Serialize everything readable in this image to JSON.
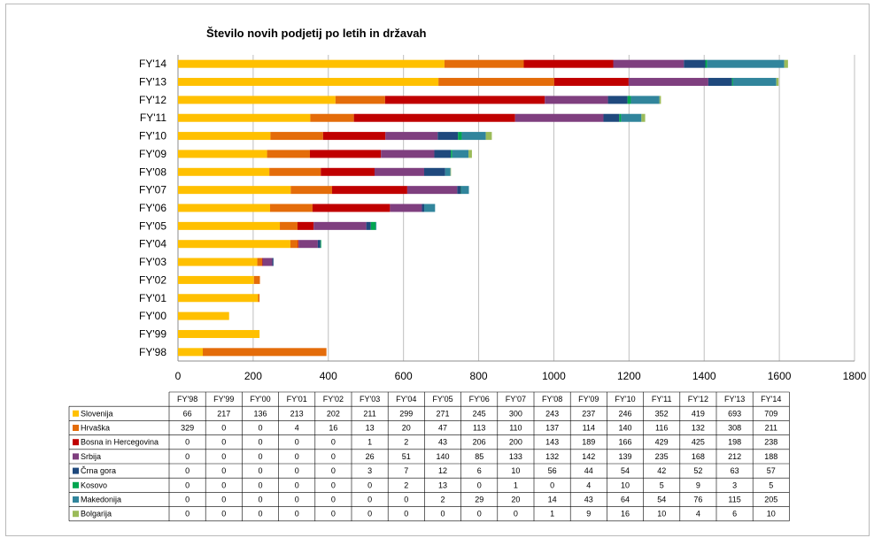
{
  "chart_data": {
    "type": "bar",
    "orientation": "horizontal",
    "stacked": true,
    "title": "Število novih podjetij po letih in državah",
    "categories": [
      "FY'98",
      "FY'99",
      "FY'00",
      "FY'01",
      "FY'02",
      "FY'03",
      "FY'04",
      "FY'05",
      "FY'06",
      "FY'07",
      "FY'08",
      "FY'09",
      "FY'10",
      "FY'11",
      "FY'12",
      "FY'13",
      "FY'14"
    ],
    "xlim": [
      0,
      1800
    ],
    "xticks": [
      0,
      200,
      400,
      600,
      800,
      1000,
      1200,
      1400,
      1600,
      1800
    ],
    "grid": true,
    "legend": "data-table",
    "series": [
      {
        "name": "Slovenija",
        "color": "#FFC000",
        "values": [
          66,
          217,
          136,
          213,
          202,
          211,
          299,
          271,
          245,
          300,
          243,
          237,
          246,
          352,
          419,
          693,
          709
        ]
      },
      {
        "name": "Hrvaška",
        "color": "#E46C0A",
        "values": [
          329,
          0,
          0,
          4,
          16,
          13,
          20,
          47,
          113,
          110,
          137,
          114,
          140,
          116,
          132,
          308,
          211
        ]
      },
      {
        "name": "Bosna in Hercegovina",
        "color": "#C00000",
        "values": [
          0,
          0,
          0,
          0,
          0,
          1,
          2,
          43,
          206,
          200,
          143,
          189,
          166,
          429,
          425,
          198,
          238
        ]
      },
      {
        "name": "Srbija",
        "color": "#7F3F7F",
        "values": [
          0,
          0,
          0,
          0,
          0,
          26,
          51,
          140,
          85,
          133,
          132,
          142,
          139,
          235,
          168,
          212,
          188
        ]
      },
      {
        "name": "Črna gora",
        "color": "#1F497D",
        "values": [
          0,
          0,
          0,
          0,
          0,
          3,
          7,
          12,
          6,
          10,
          56,
          44,
          54,
          42,
          52,
          63,
          57
        ]
      },
      {
        "name": "Kosovo",
        "color": "#00A650",
        "values": [
          0,
          0,
          0,
          0,
          0,
          0,
          2,
          13,
          0,
          1,
          0,
          4,
          10,
          5,
          9,
          3,
          5
        ]
      },
      {
        "name": "Makedonija",
        "color": "#31859C",
        "values": [
          0,
          0,
          0,
          0,
          0,
          0,
          0,
          2,
          29,
          20,
          14,
          43,
          64,
          54,
          76,
          115,
          205
        ]
      },
      {
        "name": "Bolgarija",
        "color": "#9BBB59",
        "values": [
          0,
          0,
          0,
          0,
          0,
          0,
          0,
          0,
          0,
          0,
          1,
          9,
          16,
          10,
          4,
          6,
          10
        ]
      }
    ]
  }
}
